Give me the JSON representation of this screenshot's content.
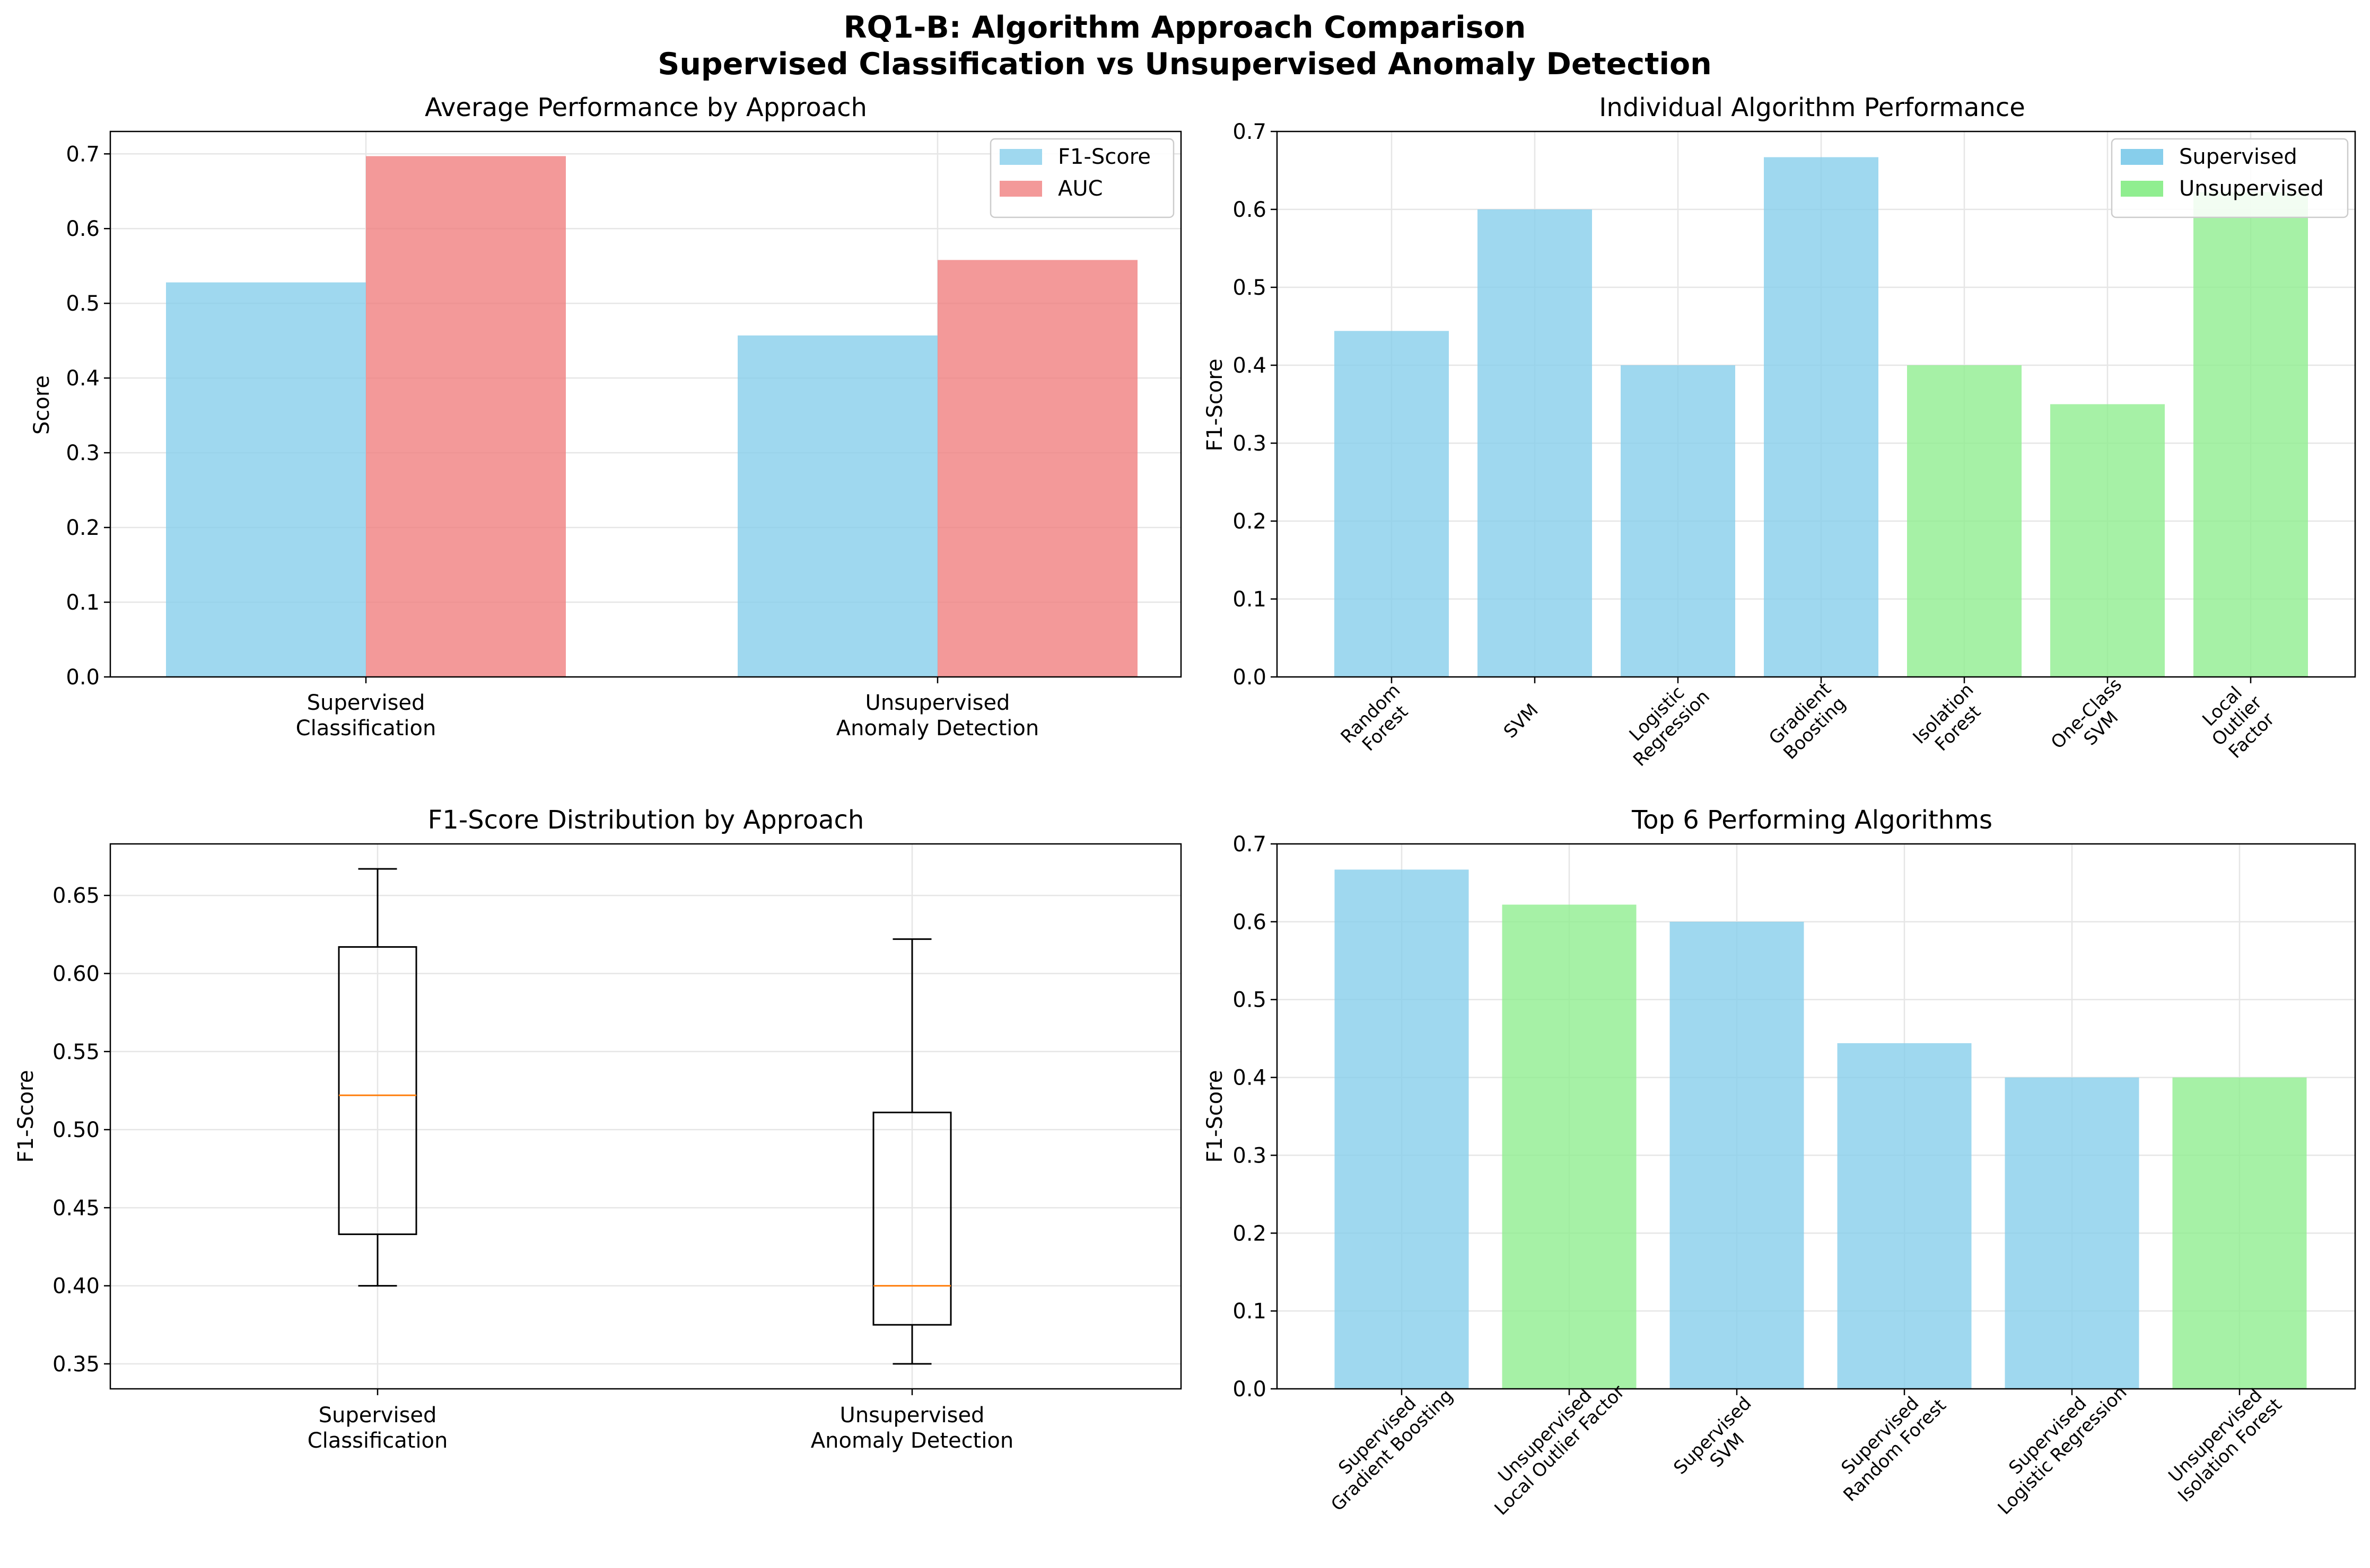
{
  "figure": {
    "title_line1": "RQ1-B: Algorithm Approach Comparison",
    "title_line2": "Supervised Classification vs Unsupervised Anomaly Detection"
  },
  "colors": {
    "supervised": "#87CEEB",
    "unsupervised": "#90EE90",
    "auc": "#F08080",
    "median": "#FF7F0E"
  },
  "chart_data": [
    {
      "id": "avg",
      "type": "bar",
      "title": "Average Performance by Approach",
      "xlabel": "",
      "ylabel": "Score",
      "categories": [
        [
          "Supervised",
          "Classification"
        ],
        [
          "Unsupervised",
          "Anomaly Detection"
        ]
      ],
      "series": [
        {
          "name": "F1-Score",
          "color": "#87CEEB",
          "values": [
            0.528,
            0.457
          ]
        },
        {
          "name": "AUC",
          "color": "#F08080",
          "values": [
            0.697,
            0.558
          ]
        }
      ],
      "ylim": [
        0,
        0.73
      ],
      "yticks": [
        "0.0",
        "0.1",
        "0.2",
        "0.3",
        "0.4",
        "0.5",
        "0.6",
        "0.7"
      ],
      "grid": true,
      "legend": "top-right"
    },
    {
      "id": "indiv",
      "type": "bar",
      "title": "Individual Algorithm Performance",
      "xlabel": "",
      "ylabel": "F1-Score",
      "categories": [
        [
          "Random",
          "Forest"
        ],
        [
          "SVM"
        ],
        [
          "Logistic",
          "Regression"
        ],
        [
          "Gradient",
          "Boosting"
        ],
        [
          "Isolation",
          "Forest"
        ],
        [
          "One-Class",
          "SVM"
        ],
        [
          "Local",
          "Outlier",
          "Factor"
        ]
      ],
      "values": [
        0.444,
        0.6,
        0.4,
        0.667,
        0.4,
        0.35,
        0.622
      ],
      "groups": [
        "Supervised",
        "Supervised",
        "Supervised",
        "Supervised",
        "Unsupervised",
        "Unsupervised",
        "Unsupervised"
      ],
      "legend_entries": [
        "Supervised",
        "Unsupervised"
      ],
      "ylim": [
        0,
        0.7
      ],
      "yticks": [
        "0.0",
        "0.1",
        "0.2",
        "0.3",
        "0.4",
        "0.5",
        "0.6",
        "0.7"
      ],
      "grid": true,
      "legend": "top-right"
    },
    {
      "id": "box",
      "type": "box",
      "title": "F1-Score Distribution by Approach",
      "xlabel": "",
      "ylabel": "F1-Score",
      "categories": [
        [
          "Supervised",
          "Classification"
        ],
        [
          "Unsupervised",
          "Anomaly Detection"
        ]
      ],
      "boxes": [
        {
          "min": 0.4,
          "q1": 0.433,
          "median": 0.522,
          "q3": 0.617,
          "max": 0.667
        },
        {
          "min": 0.35,
          "q1": 0.375,
          "median": 0.4,
          "q3": 0.511,
          "max": 0.622
        }
      ],
      "ylim": [
        0.334,
        0.683
      ],
      "yticks": [
        "0.35",
        "0.40",
        "0.45",
        "0.50",
        "0.55",
        "0.60",
        "0.65"
      ],
      "grid": true
    },
    {
      "id": "top6",
      "type": "bar",
      "title": "Top 6 Performing Algorithms",
      "xlabel": "",
      "ylabel": "F1-Score",
      "categories": [
        [
          "Supervised",
          "Gradient Boosting"
        ],
        [
          "Unsupervised",
          "Local Outlier Factor"
        ],
        [
          "Supervised",
          "SVM"
        ],
        [
          "Supervised",
          "Random Forest"
        ],
        [
          "Supervised",
          "Logistic Regression"
        ],
        [
          "Unsupervised",
          "Isolation Forest"
        ]
      ],
      "values": [
        0.667,
        0.622,
        0.6,
        0.444,
        0.4,
        0.4
      ],
      "groups": [
        "Supervised",
        "Unsupervised",
        "Supervised",
        "Supervised",
        "Supervised",
        "Unsupervised"
      ],
      "ylim": [
        0,
        0.7
      ],
      "yticks": [
        "0.0",
        "0.1",
        "0.2",
        "0.3",
        "0.4",
        "0.5",
        "0.6",
        "0.7"
      ],
      "grid": true
    }
  ]
}
